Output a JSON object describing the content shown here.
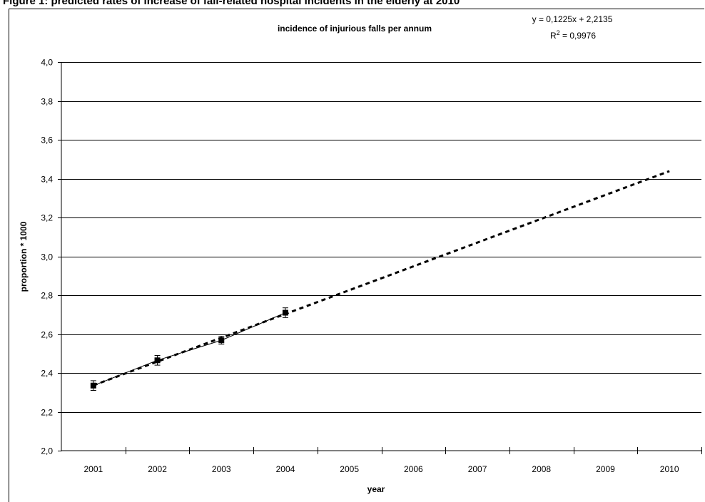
{
  "figure": {
    "caption": "Figure 1: predicted rates of increase of fall-related hospital incidents in the elderly at 2010"
  },
  "chart_data": {
    "type": "line",
    "title": "incidence of injurious falls per annum",
    "xlabel": "year",
    "ylabel": "proportion * 1000",
    "categories": [
      "2001",
      "2002",
      "2003",
      "2004",
      "2005",
      "2006",
      "2007",
      "2008",
      "2009",
      "2010"
    ],
    "yticks": [
      "2,0",
      "2,2",
      "2,4",
      "2,6",
      "2,8",
      "3,0",
      "3,2",
      "3,4",
      "3,6",
      "3,8",
      "4,0"
    ],
    "ylim": [
      2.0,
      4.0
    ],
    "grid": true,
    "series": [
      {
        "style": "solid with square markers and error bars",
        "x": [
          1,
          2,
          3,
          4
        ],
        "values": [
          2.335,
          2.465,
          2.568,
          2.71
        ],
        "error": [
          0.025,
          0.025,
          0.02,
          0.025
        ]
      },
      {
        "style": "dashed linear trend",
        "x": [
          1,
          10
        ],
        "values": [
          2.336,
          3.4385
        ]
      }
    ],
    "annotation": {
      "equation": "y = 0,1225x + 2,2135",
      "r2_prefix": "R",
      "r2_sup": "2",
      "r2_value": " = 0,9976"
    }
  }
}
